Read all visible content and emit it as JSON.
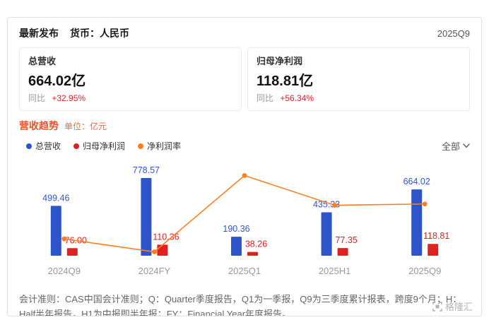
{
  "header": {
    "title": "最新发布",
    "currency_label": "货币：人民币",
    "period": "2025Q9"
  },
  "cards": [
    {
      "label": "总营收",
      "value": "664.02亿",
      "yoy_label": "同比",
      "yoy_value": "+32.95%"
    },
    {
      "label": "归母净利润",
      "value": "118.81亿",
      "yoy_label": "同比",
      "yoy_value": "+56.34%"
    }
  ],
  "chart": {
    "title": "营收趋势",
    "unit": "单位：亿元",
    "range_filter": "全部",
    "legend": [
      {
        "label": "总营收",
        "color": "#2e54c9"
      },
      {
        "label": "归母净利润",
        "color": "#e02121"
      },
      {
        "label": "净利润率",
        "color": "#ff7e1f"
      }
    ]
  },
  "chart_data": {
    "type": "bar",
    "categories": [
      "2024Q9",
      "2024FY",
      "2025Q1",
      "2025H1",
      "2025Q9"
    ],
    "series": [
      {
        "name": "总营收",
        "type": "bar",
        "color": "#2e54c9",
        "values": [
          499.46,
          778.57,
          190.36,
          435.33,
          664.02
        ]
      },
      {
        "name": "归母净利润",
        "type": "bar",
        "color": "#e02121",
        "values": [
          76.0,
          110.36,
          38.26,
          77.35,
          118.81
        ]
      },
      {
        "name": "净利润率",
        "type": "line",
        "color": "#ff7e1f",
        "values": [
          15.2,
          14.2,
          20.1,
          17.8,
          17.9
        ],
        "unit": "%"
      }
    ],
    "title": "营收趋势",
    "ylabel": "亿元",
    "line_axis": {
      "min": 13.9,
      "max": 21.0
    },
    "grid": false,
    "legend_position": "top-left"
  },
  "footnote": "会计准则：CAS中国会计准则；Q：Quarter季度报告，Q1为一季报，Q9为三季度累计报表，跨度9个月；H：Half半年报告，H1为中报即半年报；FY：Financial Year年度报告。",
  "watermark": "格隆汇"
}
